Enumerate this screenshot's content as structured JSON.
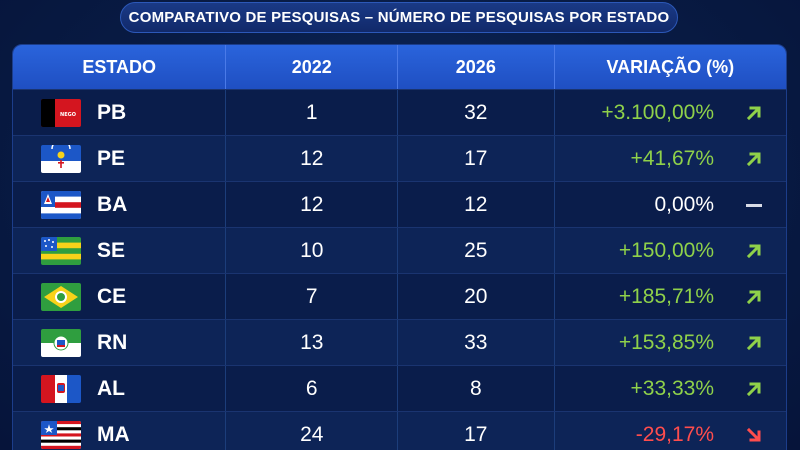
{
  "title": "COMPARATIVO DE PESQUISAS – NÚMERO DE PESQUISAS POR ESTADO",
  "headers": {
    "estado": "ESTADO",
    "y2022": "2022",
    "y2026": "2026",
    "variacao": "VARIAÇÃO (%)"
  },
  "colors": {
    "positive": "#8fd14a",
    "negative": "#ff4d4d",
    "neutral": "#ffffff",
    "header_bg": "#2a64dc"
  },
  "rows": [
    {
      "estado": "PB",
      "v2022": "1",
      "v2026": "32",
      "variacao": "+3.100,00%",
      "trend": "up"
    },
    {
      "estado": "PE",
      "v2022": "12",
      "v2026": "17",
      "variacao": "+41,67%",
      "trend": "up"
    },
    {
      "estado": "BA",
      "v2022": "12",
      "v2026": "12",
      "variacao": "0,00%",
      "trend": "flat"
    },
    {
      "estado": "SE",
      "v2022": "10",
      "v2026": "25",
      "variacao": "+150,00%",
      "trend": "up"
    },
    {
      "estado": "CE",
      "v2022": "7",
      "v2026": "20",
      "variacao": "+185,71%",
      "trend": "up"
    },
    {
      "estado": "RN",
      "v2022": "13",
      "v2026": "33",
      "variacao": "+153,85%",
      "trend": "up"
    },
    {
      "estado": "AL",
      "v2022": "6",
      "v2026": "8",
      "variacao": "+33,33%",
      "trend": "up"
    },
    {
      "estado": "MA",
      "v2022": "24",
      "v2026": "17",
      "variacao": "-29,17%",
      "trend": "down"
    }
  ],
  "flags": {
    "PB": {
      "icon": "paraiba-flag-icon",
      "text": "NEGO"
    }
  }
}
